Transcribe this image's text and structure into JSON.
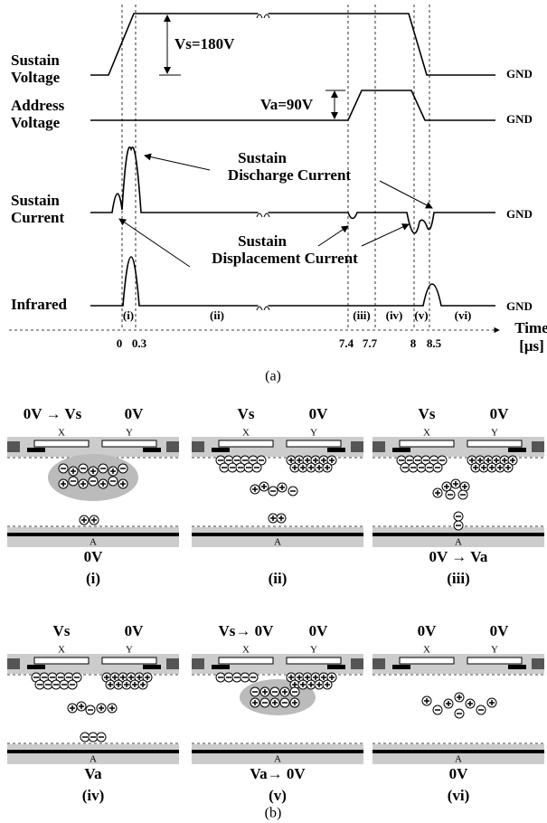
{
  "figure_a": {
    "row_labels": {
      "sustain_voltage": "Sustain Voltage",
      "address_voltage": "Address Voltage",
      "sustain_current": "Sustain Current",
      "infrared": "Infrared"
    },
    "vs_label": "Vs=180V",
    "va_label": "Va=90V",
    "gnd": "GND",
    "discharge_label": "Sustain Discharge Current",
    "displacement_label": "Sustain Displacement Current",
    "phases": [
      "(i)",
      "(ii)",
      "(iii)",
      "(iv)",
      "(v)",
      "(vi)"
    ],
    "time_label": "Time",
    "time_unit": "[μs]",
    "time_ticks": [
      "0",
      "0.3",
      "7.4",
      "7.7",
      "8",
      "8.5"
    ],
    "caption": "(a)"
  },
  "figure_b": {
    "electrodes": {
      "x": "X",
      "y": "Y",
      "a": "A"
    },
    "panels": [
      {
        "top_left": "0V → Vs",
        "top_right": "0V",
        "bottom": "0V",
        "tag": "(i)"
      },
      {
        "top_left": "Vs",
        "top_right": "0V",
        "bottom": "",
        "tag": "(ii)"
      },
      {
        "top_left": "Vs",
        "top_right": "0V",
        "bottom": "0V → Va",
        "tag": "(iii)"
      },
      {
        "top_left": "Vs",
        "top_right": "0V",
        "bottom": "Va",
        "tag": "(iv)"
      },
      {
        "top_left": "Vs→ 0V",
        "top_right": "0V",
        "bottom": "Va→ 0V",
        "tag": "(v)"
      },
      {
        "top_left": "0V",
        "top_right": "0V",
        "bottom": "0V",
        "tag": "(vi)"
      }
    ],
    "caption": "(b)"
  }
}
